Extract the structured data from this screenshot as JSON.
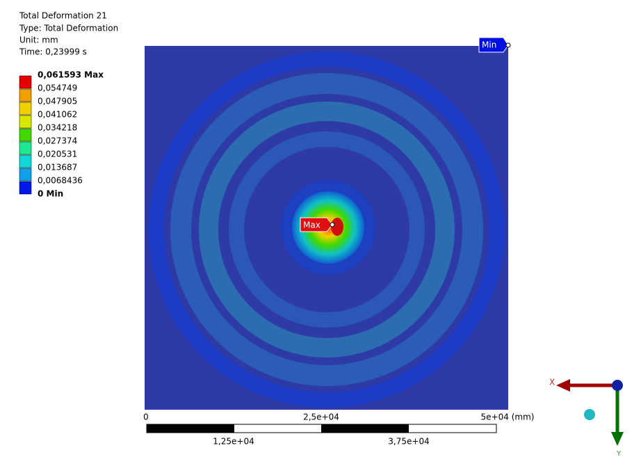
{
  "header": {
    "title": "Total Deformation 21",
    "type": "Type: Total Deformation",
    "unit": "Unit: mm",
    "time": "Time: 0,23999 s"
  },
  "legend": {
    "labels": [
      "0,061593 Max",
      "0,054749",
      "0,047905",
      "0,041062",
      "0,034218",
      "0,027374",
      "0,020531",
      "0,013687",
      "0,0068436",
      "0 Min"
    ],
    "colors": [
      "#e60000",
      "#f0a000",
      "#f0d000",
      "#d8e800",
      "#40d800",
      "#20e890",
      "#10d8d8",
      "#10a0e8",
      "#0018e8"
    ]
  },
  "tags": {
    "max": "Max",
    "min": "Min"
  },
  "scale_bar": {
    "top_labels": [
      "0",
      "2,5e+04",
      "5e+04 (mm)"
    ],
    "bottom_labels": [
      "1,25e+04",
      "3,75e+04"
    ]
  },
  "triad": {
    "x": "X",
    "y": "Y"
  }
}
